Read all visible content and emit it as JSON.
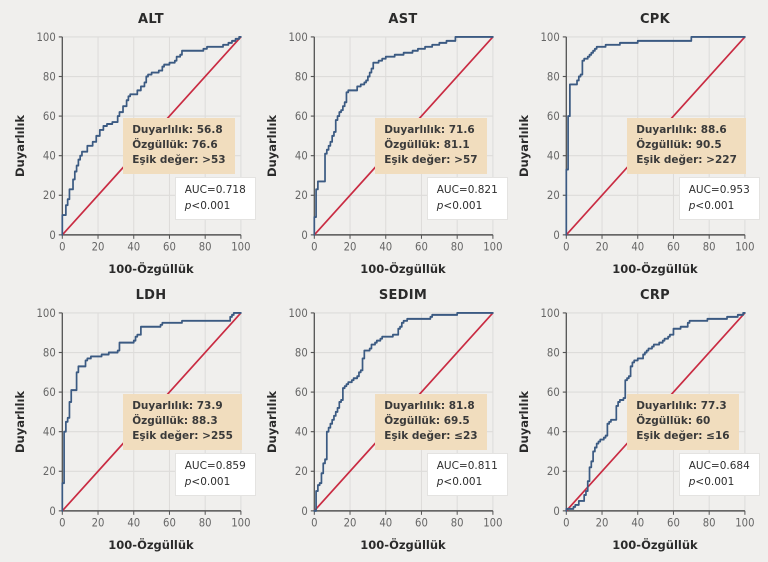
{
  "page": {
    "background": "#f0efed",
    "description": "Six ROC curve panels (2 rows x 3 columns) for laboratory parameters"
  },
  "colors": {
    "curve": "#3b5a82",
    "diagonal": "#c92b42",
    "grid": "#dddcda",
    "axis": "#555555",
    "tick_text": "#666666",
    "annotation_bg": "#f1ddbe",
    "auc_box_bg": "#ffffff",
    "auc_box_border": "#e4e3e1"
  },
  "chart_data": [
    {
      "type": "line",
      "title": "ALT",
      "xlabel": "100-Özgüllük",
      "ylabel": "Duyarlılık",
      "xlim": [
        0,
        100
      ],
      "ylim": [
        0,
        100
      ],
      "ticks": [
        0,
        20,
        40,
        60,
        80,
        100
      ],
      "grid": true,
      "sensitivity": 56.8,
      "specificity": 76.6,
      "cutoff": ">53",
      "auc": 0.718,
      "p": "<0.001",
      "annotation": {
        "line1": "Duyarlılık: 56.8",
        "line2": "Özgüllük: 76.6",
        "line3": "Eşik değer: >53"
      },
      "auc_label": "AUC=0.718",
      "p_italic": "p",
      "p_rest": "<0.001",
      "roc_points": [
        [
          0,
          0
        ],
        [
          0,
          5
        ],
        [
          2,
          10
        ],
        [
          3,
          15
        ],
        [
          4,
          18
        ],
        [
          6,
          23
        ],
        [
          7,
          28
        ],
        [
          8,
          32
        ],
        [
          9,
          35
        ],
        [
          10,
          38
        ],
        [
          11,
          40
        ],
        [
          14,
          42
        ],
        [
          17,
          45
        ],
        [
          19,
          47
        ],
        [
          21,
          50
        ],
        [
          23,
          53
        ],
        [
          25,
          55
        ],
        [
          28,
          56
        ],
        [
          31,
          57
        ],
        [
          32,
          60
        ],
        [
          34,
          62
        ],
        [
          36,
          65
        ],
        [
          37,
          68
        ],
        [
          38,
          70
        ],
        [
          42,
          71
        ],
        [
          44,
          73
        ],
        [
          46,
          75
        ],
        [
          47,
          77
        ],
        [
          48,
          80
        ],
        [
          50,
          81
        ],
        [
          54,
          82
        ],
        [
          56,
          83
        ],
        [
          57,
          85
        ],
        [
          60,
          86
        ],
        [
          63,
          87
        ],
        [
          64,
          88
        ],
        [
          66,
          90
        ],
        [
          67,
          91
        ],
        [
          68,
          93
        ],
        [
          79,
          93
        ],
        [
          81,
          94
        ],
        [
          90,
          95
        ],
        [
          93,
          96
        ],
        [
          95,
          97
        ],
        [
          97,
          98
        ],
        [
          99,
          99
        ],
        [
          100,
          100
        ]
      ]
    },
    {
      "type": "line",
      "title": "AST",
      "xlabel": "100-Özgüllük",
      "ylabel": "Duyarlılık",
      "xlim": [
        0,
        100
      ],
      "ylim": [
        0,
        100
      ],
      "ticks": [
        0,
        20,
        40,
        60,
        80,
        100
      ],
      "grid": true,
      "sensitivity": 71.6,
      "specificity": 81.1,
      "cutoff": ">57",
      "auc": 0.821,
      "p": "<0.001",
      "annotation": {
        "line1": "Duyarlılık: 71.6",
        "line2": "Özgüllük: 81.1",
        "line3": "Eşik değer: >57"
      },
      "auc_label": "AUC=0.821",
      "p_italic": "p",
      "p_rest": "<0.001",
      "roc_points": [
        [
          0,
          0
        ],
        [
          0,
          8
        ],
        [
          1,
          9
        ],
        [
          1,
          22
        ],
        [
          2,
          23
        ],
        [
          2,
          26
        ],
        [
          3,
          27
        ],
        [
          6,
          27
        ],
        [
          6,
          40
        ],
        [
          7,
          41
        ],
        [
          8,
          43
        ],
        [
          9,
          45
        ],
        [
          10,
          47
        ],
        [
          11,
          50
        ],
        [
          12,
          52
        ],
        [
          12,
          57
        ],
        [
          13,
          58
        ],
        [
          14,
          60
        ],
        [
          15,
          62
        ],
        [
          16,
          63
        ],
        [
          17,
          65
        ],
        [
          18,
          67
        ],
        [
          18,
          70
        ],
        [
          19,
          72
        ],
        [
          24,
          73
        ],
        [
          26,
          75
        ],
        [
          28,
          76
        ],
        [
          29,
          77
        ],
        [
          30,
          78
        ],
        [
          31,
          80
        ],
        [
          32,
          82
        ],
        [
          33,
          84
        ],
        [
          33,
          86
        ],
        [
          36,
          87
        ],
        [
          38,
          88
        ],
        [
          40,
          89
        ],
        [
          45,
          90
        ],
        [
          50,
          91
        ],
        [
          55,
          92
        ],
        [
          58,
          93
        ],
        [
          62,
          94
        ],
        [
          66,
          95
        ],
        [
          70,
          96
        ],
        [
          74,
          97
        ],
        [
          79,
          98
        ],
        [
          80,
          100
        ],
        [
          100,
          100
        ]
      ]
    },
    {
      "type": "line",
      "title": "CPK",
      "xlabel": "100-Özgüllük",
      "ylabel": "Duyarlılık",
      "xlim": [
        0,
        100
      ],
      "ylim": [
        0,
        100
      ],
      "ticks": [
        0,
        20,
        40,
        60,
        80,
        100
      ],
      "grid": true,
      "sensitivity": 88.6,
      "specificity": 90.5,
      "cutoff": ">227",
      "auc": 0.953,
      "p": "<0.001",
      "annotation": {
        "line1": "Duyarlılık: 88.6",
        "line2": "Özgüllük: 90.5",
        "line3": "Eşik değer: >227"
      },
      "auc_label": "AUC=0.953",
      "p_italic": "p",
      "p_rest": "<0.001",
      "roc_points": [
        [
          0,
          0
        ],
        [
          0,
          32
        ],
        [
          1,
          33
        ],
        [
          1,
          59
        ],
        [
          2,
          60
        ],
        [
          2,
          75
        ],
        [
          3,
          76
        ],
        [
          6,
          76
        ],
        [
          6,
          77
        ],
        [
          7,
          78
        ],
        [
          8,
          80
        ],
        [
          9,
          81
        ],
        [
          9,
          87
        ],
        [
          10,
          88
        ],
        [
          12,
          89
        ],
        [
          13,
          90
        ],
        [
          14,
          91
        ],
        [
          15,
          92
        ],
        [
          16,
          93
        ],
        [
          17,
          94
        ],
        [
          18,
          95
        ],
        [
          22,
          95
        ],
        [
          25,
          96
        ],
        [
          30,
          96
        ],
        [
          31,
          97
        ],
        [
          40,
          97
        ],
        [
          42,
          98
        ],
        [
          70,
          98
        ],
        [
          72,
          100
        ],
        [
          100,
          100
        ]
      ]
    },
    {
      "type": "line",
      "title": "LDH",
      "xlabel": "100-Özgüllük",
      "ylabel": "Duyarlılık",
      "xlim": [
        0,
        100
      ],
      "ylim": [
        0,
        100
      ],
      "ticks": [
        0,
        20,
        40,
        60,
        80,
        100
      ],
      "grid": true,
      "sensitivity": 73.9,
      "specificity": 88.3,
      "cutoff": ">255",
      "auc": 0.859,
      "p": "<0.001",
      "annotation": {
        "line1": "Duyarlılık: 73.9",
        "line2": "Özgüllük: 88.3",
        "line3": "Eşik değer: >255"
      },
      "auc_label": "AUC=0.859",
      "p_italic": "p",
      "p_rest": "<0.001",
      "roc_points": [
        [
          0,
          0
        ],
        [
          0,
          14
        ],
        [
          1,
          14
        ],
        [
          1,
          39
        ],
        [
          2,
          40
        ],
        [
          2,
          42
        ],
        [
          3,
          45
        ],
        [
          4,
          47
        ],
        [
          5,
          55
        ],
        [
          5,
          60
        ],
        [
          6,
          61
        ],
        [
          8,
          61
        ],
        [
          8,
          62
        ],
        [
          9,
          70
        ],
        [
          9,
          72
        ],
        [
          10,
          73
        ],
        [
          13,
          73
        ],
        [
          13,
          74
        ],
        [
          14,
          76
        ],
        [
          16,
          77
        ],
        [
          17,
          78
        ],
        [
          22,
          78
        ],
        [
          23,
          79
        ],
        [
          26,
          79
        ],
        [
          27,
          80
        ],
        [
          31,
          80
        ],
        [
          32,
          81
        ],
        [
          32,
          85
        ],
        [
          33,
          85
        ],
        [
          40,
          85
        ],
        [
          41,
          86
        ],
        [
          42,
          88
        ],
        [
          44,
          89
        ],
        [
          44,
          92
        ],
        [
          45,
          93
        ],
        [
          55,
          93
        ],
        [
          56,
          94
        ],
        [
          57,
          95
        ],
        [
          67,
          95
        ],
        [
          68,
          96
        ],
        [
          94,
          96
        ],
        [
          95,
          98
        ],
        [
          96,
          99
        ],
        [
          98,
          100
        ],
        [
          100,
          100
        ]
      ]
    },
    {
      "type": "line",
      "title": "SEDIM",
      "xlabel": "100-Özgüllük",
      "ylabel": "Duyarlılık",
      "xlim": [
        0,
        100
      ],
      "ylim": [
        0,
        100
      ],
      "ticks": [
        0,
        20,
        40,
        60,
        80,
        100
      ],
      "grid": true,
      "sensitivity": 81.8,
      "specificity": 69.5,
      "cutoff": "≤23",
      "auc": 0.811,
      "p": "<0.001",
      "annotation": {
        "line1": "Duyarlılık: 81.8",
        "line2": "Özgüllük: 69.5",
        "line3": "Eşik değer: ≤23"
      },
      "auc_label": "AUC=0.811",
      "p_italic": "p",
      "p_rest": "<0.001",
      "roc_points": [
        [
          0,
          0
        ],
        [
          1,
          0
        ],
        [
          1,
          9
        ],
        [
          2,
          10
        ],
        [
          3,
          13
        ],
        [
          4,
          14
        ],
        [
          5,
          19
        ],
        [
          5,
          20
        ],
        [
          6,
          24
        ],
        [
          6,
          26
        ],
        [
          7,
          26
        ],
        [
          7,
          37
        ],
        [
          8,
          40
        ],
        [
          9,
          42
        ],
        [
          10,
          44
        ],
        [
          11,
          46
        ],
        [
          12,
          48
        ],
        [
          13,
          50
        ],
        [
          14,
          52
        ],
        [
          15,
          55
        ],
        [
          16,
          56
        ],
        [
          17,
          62
        ],
        [
          18,
          63
        ],
        [
          19,
          64
        ],
        [
          21,
          65
        ],
        [
          22,
          66
        ],
        [
          24,
          67
        ],
        [
          25,
          68
        ],
        [
          26,
          70
        ],
        [
          27,
          71
        ],
        [
          28,
          77
        ],
        [
          29,
          81
        ],
        [
          31,
          81
        ],
        [
          32,
          82
        ],
        [
          34,
          84
        ],
        [
          35,
          85
        ],
        [
          37,
          86
        ],
        [
          38,
          87
        ],
        [
          39,
          88
        ],
        [
          44,
          88
        ],
        [
          47,
          89
        ],
        [
          48,
          92
        ],
        [
          49,
          93
        ],
        [
          50,
          95
        ],
        [
          52,
          96
        ],
        [
          54,
          97
        ],
        [
          65,
          97
        ],
        [
          66,
          98
        ],
        [
          70,
          99
        ],
        [
          80,
          99
        ],
        [
          82,
          100
        ],
        [
          100,
          100
        ]
      ]
    },
    {
      "type": "line",
      "title": "CRP",
      "xlabel": "100-Özgüllük",
      "ylabel": "Duyarlılık",
      "xlim": [
        0,
        100
      ],
      "ylim": [
        0,
        100
      ],
      "ticks": [
        0,
        20,
        40,
        60,
        80,
        100
      ],
      "grid": true,
      "sensitivity": 77.3,
      "specificity": 60,
      "cutoff": "≤16",
      "auc": 0.684,
      "p": "<0.001",
      "annotation": {
        "line1": "Duyarlılık: 77.3",
        "line2": "Özgüllük: 60",
        "line3": "Eşik değer: ≤16"
      },
      "auc_label": "AUC=0.684",
      "p_italic": "p",
      "p_rest": "<0.001",
      "roc_points": [
        [
          0,
          0
        ],
        [
          1,
          1
        ],
        [
          4,
          1
        ],
        [
          5,
          2
        ],
        [
          7,
          3
        ],
        [
          8,
          5
        ],
        [
          10,
          5
        ],
        [
          11,
          8
        ],
        [
          12,
          10
        ],
        [
          13,
          15
        ],
        [
          14,
          22
        ],
        [
          15,
          25
        ],
        [
          16,
          30
        ],
        [
          17,
          32
        ],
        [
          18,
          34
        ],
        [
          19,
          35
        ],
        [
          21,
          36
        ],
        [
          22,
          37
        ],
        [
          23,
          38
        ],
        [
          24,
          44
        ],
        [
          25,
          45
        ],
        [
          26,
          46
        ],
        [
          28,
          46
        ],
        [
          28,
          52
        ],
        [
          29,
          53
        ],
        [
          30,
          55
        ],
        [
          32,
          56
        ],
        [
          33,
          57
        ],
        [
          33,
          65
        ],
        [
          34,
          66
        ],
        [
          35,
          67
        ],
        [
          36,
          68
        ],
        [
          37,
          73
        ],
        [
          38,
          75
        ],
        [
          40,
          76
        ],
        [
          43,
          77
        ],
        [
          44,
          79
        ],
        [
          45,
          80
        ],
        [
          46,
          81
        ],
        [
          48,
          82
        ],
        [
          49,
          83
        ],
        [
          52,
          84
        ],
        [
          54,
          85
        ],
        [
          55,
          86
        ],
        [
          57,
          87
        ],
        [
          58,
          88
        ],
        [
          60,
          89
        ],
        [
          62,
          92
        ],
        [
          64,
          92
        ],
        [
          65,
          93
        ],
        [
          68,
          93
        ],
        [
          69,
          95
        ],
        [
          70,
          96
        ],
        [
          79,
          96
        ],
        [
          80,
          97
        ],
        [
          90,
          97
        ],
        [
          91,
          98
        ],
        [
          96,
          98
        ],
        [
          97,
          99
        ],
        [
          99,
          99
        ],
        [
          100,
          100
        ]
      ]
    }
  ]
}
